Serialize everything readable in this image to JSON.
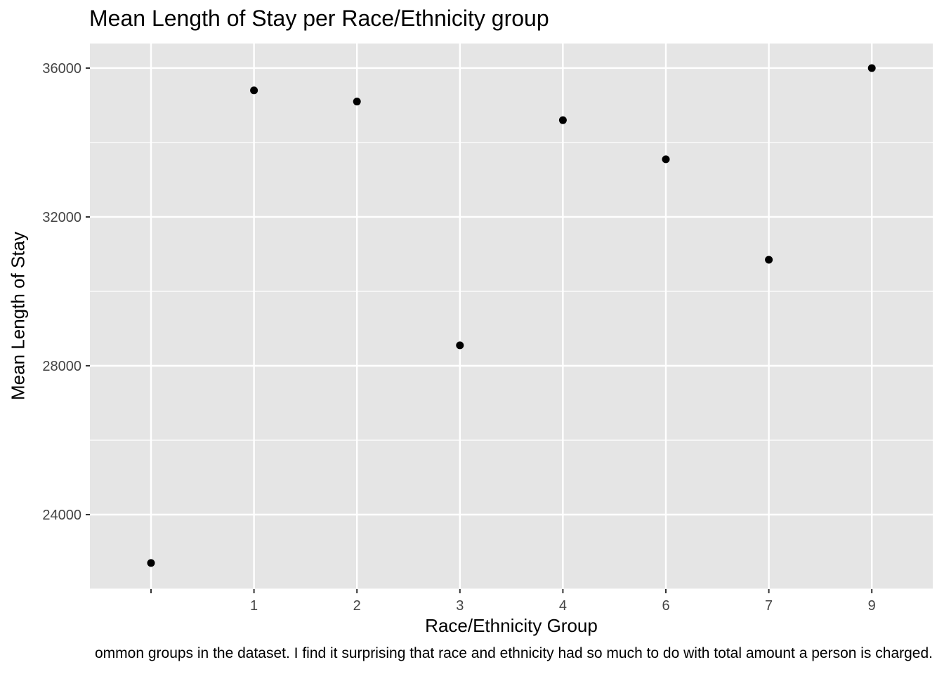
{
  "chart_data": {
    "type": "scatter",
    "title": "Mean Length of Stay per Race/Ethnicity group",
    "xlabel": "Race/Ethnicity Group",
    "ylabel": "Mean Length of Stay",
    "caption": "ommon groups in the dataset. I find it surprising that race and ethnicity had so much to do with total amount a person is charged.",
    "categories": [
      "",
      "1",
      "2",
      "3",
      "4",
      "6",
      "7",
      "9"
    ],
    "values": [
      22700,
      35400,
      35100,
      28550,
      34600,
      33550,
      30850,
      36000
    ],
    "ylim": [
      22000,
      36660
    ],
    "yticks": [
      24000,
      28000,
      32000,
      36000
    ],
    "grid": true,
    "colors": {
      "panel": "#e5e5e5",
      "grid": "#ffffff",
      "point": "#000000",
      "tick": "#444444"
    }
  }
}
